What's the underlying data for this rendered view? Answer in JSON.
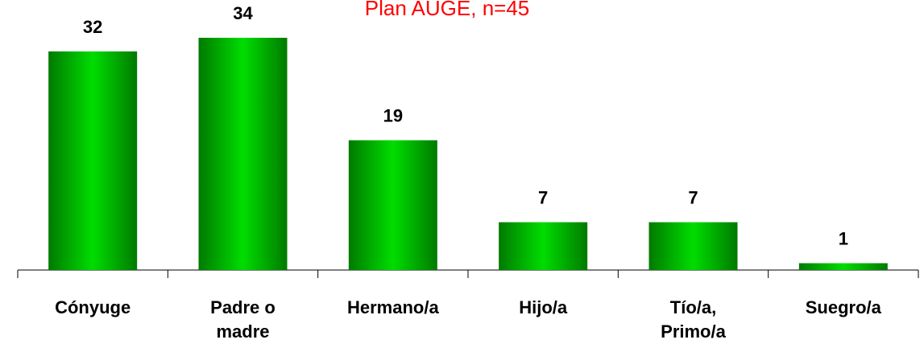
{
  "chart_data": {
    "type": "bar",
    "title": "Plan AUGE, n=45",
    "categories": [
      "Cónyuge",
      "Padre o madre",
      "Hermano/a",
      "Hijo/a",
      "Tío/a, Primo/a",
      "Suegro/a"
    ],
    "values": [
      32,
      34,
      19,
      7,
      7,
      1
    ],
    "color": "#00dd00",
    "ylim": [
      0,
      40
    ]
  }
}
